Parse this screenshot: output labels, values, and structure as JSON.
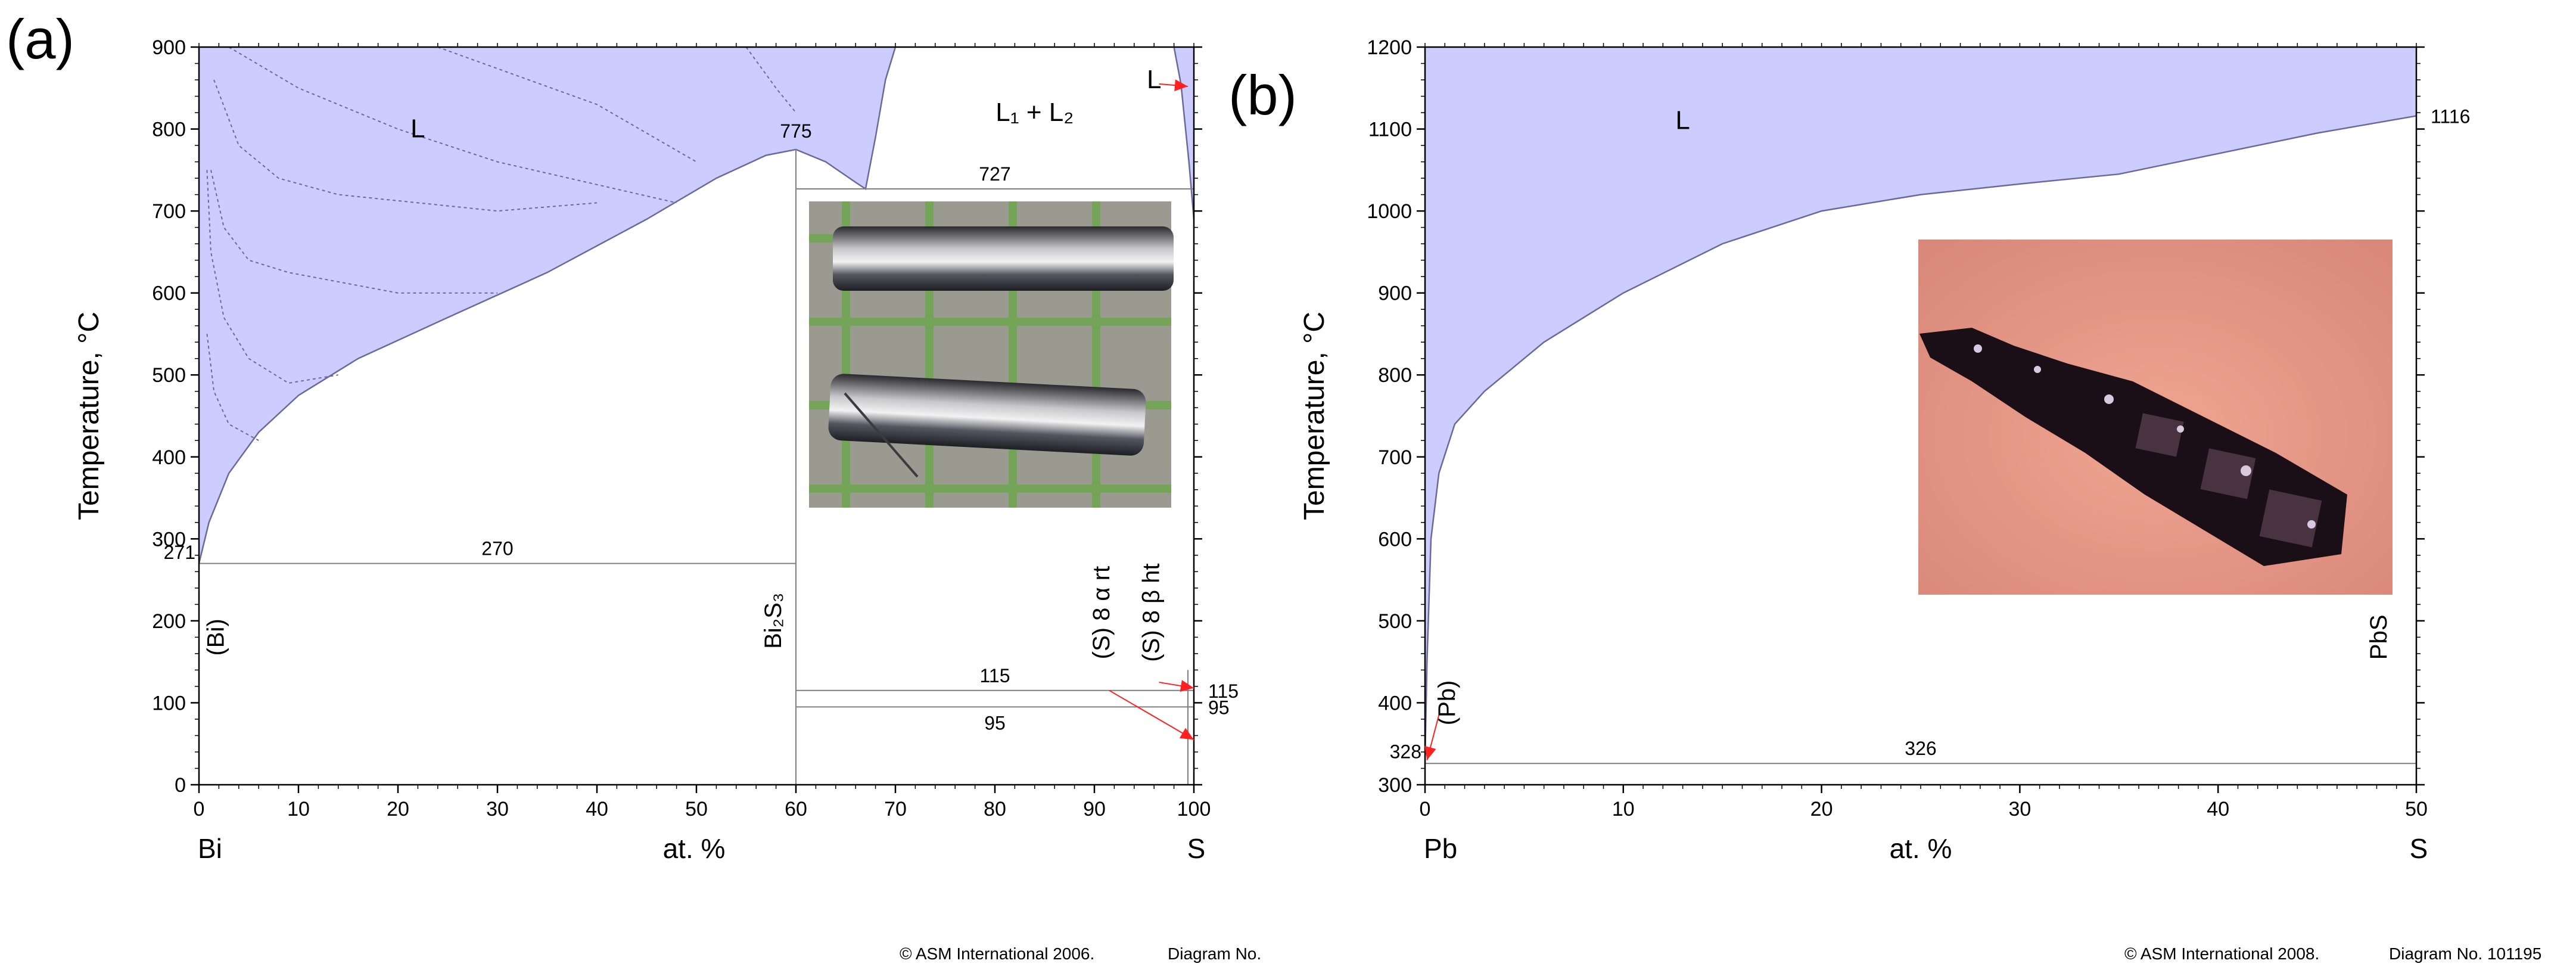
{
  "colors": {
    "liquid_fill": "#ccccff",
    "boundary": "#6a6a9a",
    "arrow": "#ff2020",
    "photo_a_bg": "#9a9a90",
    "photo_b_bg": "#e89a88"
  },
  "panels": {
    "a": {
      "letter": "(a)",
      "copyright": "© ASM International 2006.",
      "diagram_no": "Diagram No."
    },
    "b": {
      "letter": "(b)",
      "copyright": "© ASM International 2008.",
      "diagram_no": "Diagram No. 101195"
    }
  },
  "chart_data": [
    {
      "type": "phase-diagram",
      "panel": "(a)",
      "system": "Bi-S",
      "xlabel": "at. %",
      "ylabel": "Temperature, °C",
      "x_left_element": "Bi",
      "x_right_element": "S",
      "xlim": [
        0,
        100
      ],
      "ylim": [
        0,
        900
      ],
      "xticks": [
        0,
        10,
        20,
        30,
        40,
        50,
        60,
        70,
        80,
        90,
        100
      ],
      "yticks": [
        0,
        100,
        200,
        300,
        400,
        500,
        600,
        700,
        800,
        900
      ],
      "liquidus_bi_side": [
        [
          0,
          270
        ],
        [
          1,
          320
        ],
        [
          3,
          380
        ],
        [
          6,
          430
        ],
        [
          10,
          475
        ],
        [
          16,
          520
        ],
        [
          25,
          570
        ],
        [
          35,
          625
        ],
        [
          45,
          690
        ],
        [
          52,
          740
        ],
        [
          57,
          768
        ],
        [
          60,
          775
        ]
      ],
      "liquidus_bi2s3_to_monotectic": [
        [
          60,
          775
        ],
        [
          63,
          760
        ],
        [
          66,
          735
        ],
        [
          67,
          727
        ]
      ],
      "miscibility_gap_left": [
        [
          67,
          727
        ],
        [
          68,
          790
        ],
        [
          69,
          860
        ],
        [
          70,
          900
        ]
      ],
      "liquidus_s_side": [
        [
          98,
          900
        ],
        [
          98.7,
          855
        ],
        [
          99.5,
          760
        ],
        [
          100,
          690
        ]
      ],
      "invariants": [
        {
          "label": "270",
          "temperature": 270,
          "x_from": 0,
          "x_to": 60
        },
        {
          "label": "727",
          "temperature": 727,
          "x_from": 60,
          "x_to": 100
        },
        {
          "label": "115",
          "temperature": 115,
          "x_from": 60,
          "x_to": 100
        },
        {
          "label": "95",
          "temperature": 95,
          "x_from": 60,
          "x_to": 100
        }
      ],
      "point_labels": [
        {
          "text": "775",
          "x": 60,
          "y": 775
        },
        {
          "text": "271",
          "x": 0,
          "y": 271
        },
        {
          "text": "115",
          "x": 100,
          "y": 115
        },
        {
          "text": "95",
          "x": 100,
          "y": 95
        }
      ],
      "regions": [
        {
          "text": "L",
          "x": 22,
          "y": 790
        },
        {
          "text": "L₁ + L₂",
          "x": 84,
          "y": 810
        },
        {
          "text": "L",
          "x": 96,
          "y": 850
        }
      ],
      "phases": [
        {
          "text": "(Bi)",
          "x": 2.5,
          "y": 180
        },
        {
          "text": "Bi₂S₃",
          "x": 58.5,
          "y": 200
        },
        {
          "text": "(S) 8 α rt",
          "x": 91.5,
          "y": 210
        },
        {
          "text": "(S) 8 β ht",
          "x": 96.5,
          "y": 210
        }
      ],
      "guide_curves": [
        [
          [
            0.8,
            750
          ],
          [
            1.2,
            650
          ],
          [
            2.5,
            570
          ],
          [
            5,
            520
          ],
          [
            9,
            490
          ],
          [
            14,
            500
          ]
        ],
        [
          [
            1.2,
            750
          ],
          [
            2.5,
            680
          ],
          [
            5,
            640
          ],
          [
            9,
            625
          ],
          [
            20,
            600
          ],
          [
            30,
            600
          ]
        ],
        [
          [
            1.5,
            860
          ],
          [
            4,
            780
          ],
          [
            8,
            740
          ],
          [
            14,
            720
          ],
          [
            30,
            700
          ],
          [
            40,
            710
          ]
        ],
        [
          [
            3,
            900
          ],
          [
            10,
            850
          ],
          [
            20,
            800
          ],
          [
            30,
            760
          ],
          [
            48,
            710
          ]
        ],
        [
          [
            0.8,
            550
          ],
          [
            1.5,
            480
          ],
          [
            3,
            440
          ],
          [
            6,
            420
          ]
        ],
        [
          [
            24,
            900
          ],
          [
            40,
            830
          ],
          [
            50,
            760
          ]
        ],
        [
          [
            55,
            900
          ],
          [
            58,
            850
          ],
          [
            60,
            820
          ]
        ]
      ]
    },
    {
      "type": "phase-diagram",
      "panel": "(b)",
      "system": "Pb-S",
      "xlabel": "at. %",
      "ylabel": "Temperature, °C",
      "x_left_element": "Pb",
      "x_right_element": "S",
      "xlim": [
        0,
        50
      ],
      "ylim": [
        300,
        1200
      ],
      "xticks": [
        0,
        10,
        20,
        30,
        40,
        50
      ],
      "yticks": [
        300,
        400,
        500,
        600,
        700,
        800,
        900,
        1000,
        1100,
        1200
      ],
      "liquidus": [
        [
          0,
          328
        ],
        [
          0.1,
          450
        ],
        [
          0.3,
          600
        ],
        [
          0.7,
          680
        ],
        [
          1.5,
          740
        ],
        [
          3,
          780
        ],
        [
          6,
          840
        ],
        [
          10,
          900
        ],
        [
          15,
          960
        ],
        [
          20,
          1000
        ],
        [
          25,
          1020
        ],
        [
          30,
          1033
        ],
        [
          35,
          1045
        ],
        [
          40,
          1070
        ],
        [
          45,
          1095
        ],
        [
          50,
          1116
        ]
      ],
      "invariants": [
        {
          "label": "326",
          "temperature": 326,
          "x_from": 0,
          "x_to": 50
        }
      ],
      "point_labels": [
        {
          "text": "328",
          "x": 0,
          "y": 328
        },
        {
          "text": "1116",
          "x": 50,
          "y": 1116
        }
      ],
      "regions": [
        {
          "text": "L",
          "x": 13,
          "y": 1100
        }
      ],
      "phases": [
        {
          "text": "(Pb)",
          "x": 1.5,
          "y": 400
        },
        {
          "text": "PbS",
          "x": 48.5,
          "y": 480
        }
      ]
    }
  ]
}
